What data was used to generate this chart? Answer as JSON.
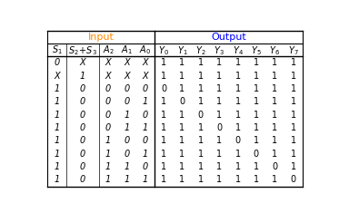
{
  "input_label": "Input",
  "output_label": "Output",
  "input_color": "#FF8C00",
  "output_color": "#0000FF",
  "rows": [
    [
      "0",
      "X",
      "X",
      "X",
      "X",
      "1",
      "1",
      "1",
      "1",
      "1",
      "1",
      "1",
      "1"
    ],
    [
      "X",
      "1",
      "X",
      "X",
      "X",
      "1",
      "1",
      "1",
      "1",
      "1",
      "1",
      "1",
      "1"
    ],
    [
      "1",
      "0",
      "0",
      "0",
      "0",
      "0",
      "1",
      "1",
      "1",
      "1",
      "1",
      "1",
      "1"
    ],
    [
      "1",
      "0",
      "0",
      "0",
      "1",
      "1",
      "0",
      "1",
      "1",
      "1",
      "1",
      "1",
      "1"
    ],
    [
      "1",
      "0",
      "0",
      "1",
      "0",
      "1",
      "1",
      "0",
      "1",
      "1",
      "1",
      "1",
      "1"
    ],
    [
      "1",
      "0",
      "0",
      "1",
      "1",
      "1",
      "1",
      "1",
      "0",
      "1",
      "1",
      "1",
      "1"
    ],
    [
      "1",
      "0",
      "1",
      "0",
      "0",
      "1",
      "1",
      "1",
      "1",
      "0",
      "1",
      "1",
      "1"
    ],
    [
      "1",
      "0",
      "1",
      "0",
      "1",
      "1",
      "1",
      "1",
      "1",
      "1",
      "0",
      "1",
      "1"
    ],
    [
      "1",
      "0",
      "1",
      "1",
      "0",
      "1",
      "1",
      "1",
      "1",
      "1",
      "1",
      "0",
      "1"
    ],
    [
      "1",
      "0",
      "1",
      "1",
      "1",
      "1",
      "1",
      "1",
      "1",
      "1",
      "1",
      "1",
      "0"
    ]
  ],
  "n_input_cols": 5,
  "bg_color": "#FFFFFF",
  "line_color": "#000000",
  "italic_cols": [
    0,
    1,
    2,
    3,
    4
  ],
  "text_fontsize": 7.0,
  "header_fontsize": 7.0
}
